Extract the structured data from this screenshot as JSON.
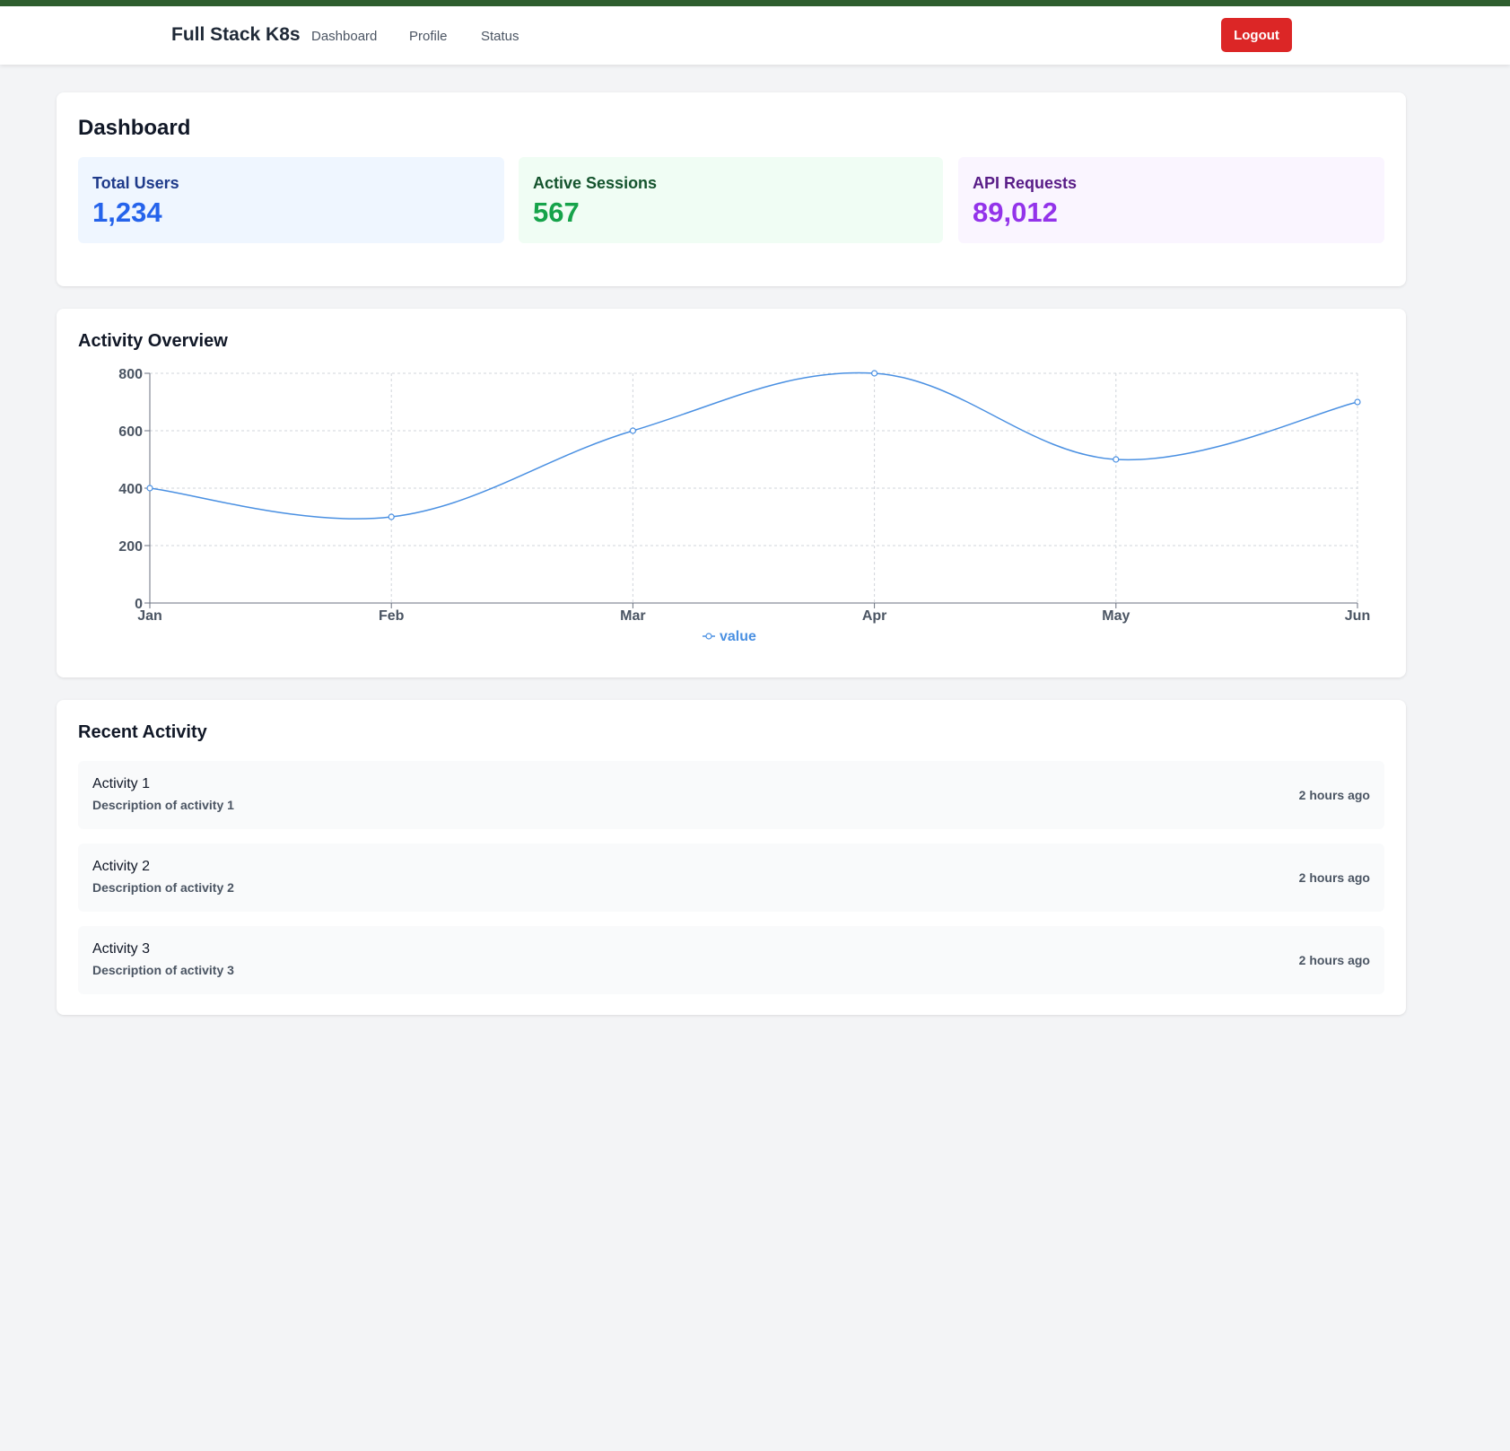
{
  "navbar": {
    "brand": "Full Stack K8s",
    "links": [
      "Dashboard",
      "Profile",
      "Status"
    ],
    "logout_label": "Logout"
  },
  "dashboard": {
    "title": "Dashboard",
    "stats": [
      {
        "label": "Total Users",
        "value": "1,234",
        "label_color": "#1e3a8a",
        "value_color": "#2563eb",
        "bg": "#eff6ff"
      },
      {
        "label": "Active Sessions",
        "value": "567",
        "label_color": "#14532d",
        "value_color": "#16a34a",
        "bg": "#f0fdf4"
      },
      {
        "label": "API Requests",
        "value": "89,012",
        "label_color": "#581c87",
        "value_color": "#9333ea",
        "bg": "#faf5ff"
      }
    ]
  },
  "activity_overview": {
    "title": "Activity Overview"
  },
  "chart_data": {
    "type": "line",
    "categories": [
      "Jan",
      "Feb",
      "Mar",
      "Apr",
      "May",
      "Jun"
    ],
    "series": [
      {
        "name": "value",
        "values": [
          400,
          300,
          600,
          800,
          500,
          700
        ]
      }
    ],
    "yticks": [
      0,
      200,
      400,
      600,
      800
    ],
    "ylim": [
      0,
      800
    ],
    "grid": true,
    "legend": "bottom-center",
    "line_color": "#4a90e2"
  },
  "recent_activity": {
    "title": "Recent Activity",
    "items": [
      {
        "title": "Activity 1",
        "description": "Description of activity 1",
        "time": "2 hours ago"
      },
      {
        "title": "Activity 2",
        "description": "Description of activity 2",
        "time": "2 hours ago"
      },
      {
        "title": "Activity 3",
        "description": "Description of activity 3",
        "time": "2 hours ago"
      }
    ]
  }
}
